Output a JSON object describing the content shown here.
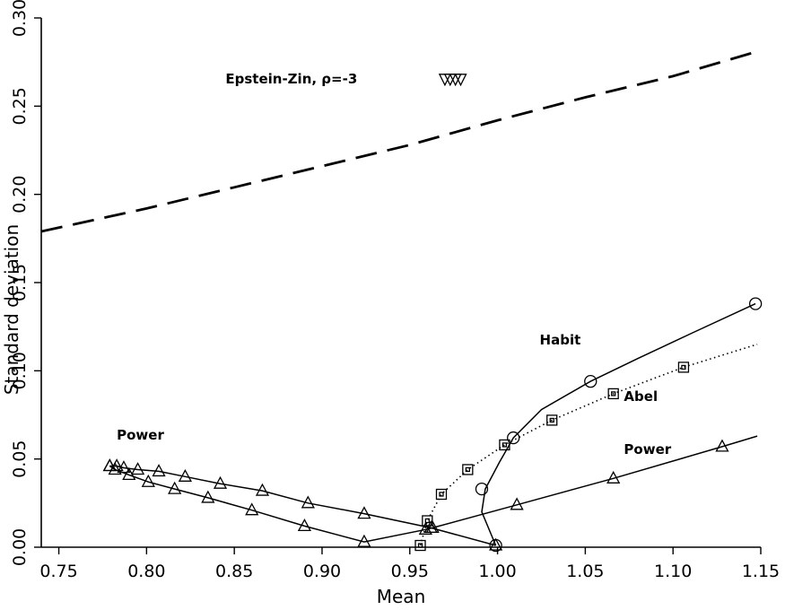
{
  "chart_data": {
    "type": "line",
    "xlabel": "Mean",
    "ylabel": "Standard deviation",
    "xlim": [
      0.74,
      1.15
    ],
    "ylim": [
      0.0,
      0.3
    ],
    "x_ticks": [
      0.75,
      0.8,
      0.85,
      0.9,
      0.95,
      1.0,
      1.05,
      1.1,
      1.15
    ],
    "x_tick_labels": [
      "0.75",
      "0.80",
      "0.85",
      "0.90",
      "0.95",
      "1.00",
      "1.05",
      "1.10",
      "1.15"
    ],
    "y_ticks": [
      0.0,
      0.05,
      0.1,
      0.15,
      0.2,
      0.25,
      0.3
    ],
    "y_tick_labels": [
      "0.00",
      "0.05",
      "0.10",
      "0.15",
      "0.20",
      "0.25",
      "0.30"
    ],
    "grid": false,
    "legend": "none",
    "annotations": [
      {
        "text": "Epstein-Zin, ρ=-3",
        "x": 0.845,
        "y": 0.263
      },
      {
        "text": "Habit",
        "x": 1.024,
        "y": 0.115
      },
      {
        "text": "Abel",
        "x": 1.072,
        "y": 0.083
      },
      {
        "text": "Power",
        "x": 1.072,
        "y": 0.053
      },
      {
        "text": "Power",
        "x": 0.783,
        "y": 0.061
      }
    ],
    "series": [
      {
        "name": "Epstein-Zin, ρ=-3",
        "style": "dashed",
        "marker": "none",
        "x": [
          0.74,
          0.8,
          0.85,
          0.9,
          0.95,
          1.0,
          1.05,
          1.1,
          1.148
        ],
        "y": [
          0.179,
          0.192,
          0.204,
          0.216,
          0.228,
          0.242,
          0.255,
          0.267,
          0.281
        ]
      },
      {
        "name": "Epstein-Zin, ρ=-3",
        "style": "none",
        "marker": "inverted-triangle",
        "x": [
          0.97,
          0.973,
          0.976,
          0.979
        ],
        "y": [
          0.265,
          0.265,
          0.265,
          0.265
        ]
      },
      {
        "name": "Habit",
        "style": "solid",
        "marker": "circle",
        "x": [
          0.999,
          0.991,
          0.993,
          1.001,
          1.009,
          1.025,
          1.053,
          1.08,
          1.11,
          1.147
        ],
        "y": [
          0.001,
          0.02,
          0.033,
          0.048,
          0.062,
          0.078,
          0.094,
          0.107,
          0.121,
          0.138
        ],
        "marker_x": [
          0.999,
          0.991,
          1.009,
          1.053,
          1.147
        ],
        "marker_y": [
          0.001,
          0.033,
          0.062,
          0.094,
          0.138
        ]
      },
      {
        "name": "Abel",
        "style": "dotted",
        "marker": "square",
        "x": [
          0.956,
          0.958,
          0.96,
          0.968,
          0.983,
          1.004,
          1.031,
          1.066,
          1.106,
          1.148
        ],
        "y": [
          0.001,
          0.008,
          0.015,
          0.03,
          0.044,
          0.058,
          0.072,
          0.087,
          0.102,
          0.115
        ],
        "marker_x": [
          0.956,
          0.96,
          0.968,
          0.983,
          1.004,
          1.031,
          1.066,
          1.106
        ],
        "marker_y": [
          0.001,
          0.015,
          0.03,
          0.044,
          0.058,
          0.072,
          0.087,
          0.102
        ]
      },
      {
        "name": "Power",
        "style": "solid",
        "marker": "triangle",
        "x": [
          0.779,
          0.783,
          0.787,
          0.795,
          0.807,
          0.822,
          0.842,
          0.866,
          0.892,
          0.924,
          0.962,
          0.999
        ],
        "y": [
          0.046,
          0.046,
          0.045,
          0.044,
          0.043,
          0.04,
          0.036,
          0.032,
          0.025,
          0.019,
          0.011,
          0.001
        ]
      },
      {
        "name": "Power",
        "style": "solid",
        "marker": "triangle",
        "x": [
          0.779,
          0.782,
          0.79,
          0.801,
          0.816,
          0.835,
          0.86,
          0.89,
          0.924,
          0.959,
          0.963,
          1.011,
          1.066,
          1.128,
          1.148
        ],
        "y": [
          0.046,
          0.044,
          0.041,
          0.037,
          0.033,
          0.028,
          0.021,
          0.012,
          0.003,
          0.01,
          0.011,
          0.024,
          0.039,
          0.057,
          0.063
        ],
        "marker_x": [
          0.779,
          0.782,
          0.79,
          0.801,
          0.816,
          0.835,
          0.86,
          0.89,
          0.924,
          0.959,
          0.963,
          1.011,
          1.066,
          1.128
        ],
        "marker_y": [
          0.046,
          0.044,
          0.041,
          0.037,
          0.033,
          0.028,
          0.021,
          0.012,
          0.003,
          0.01,
          0.011,
          0.024,
          0.039,
          0.057
        ]
      }
    ]
  }
}
